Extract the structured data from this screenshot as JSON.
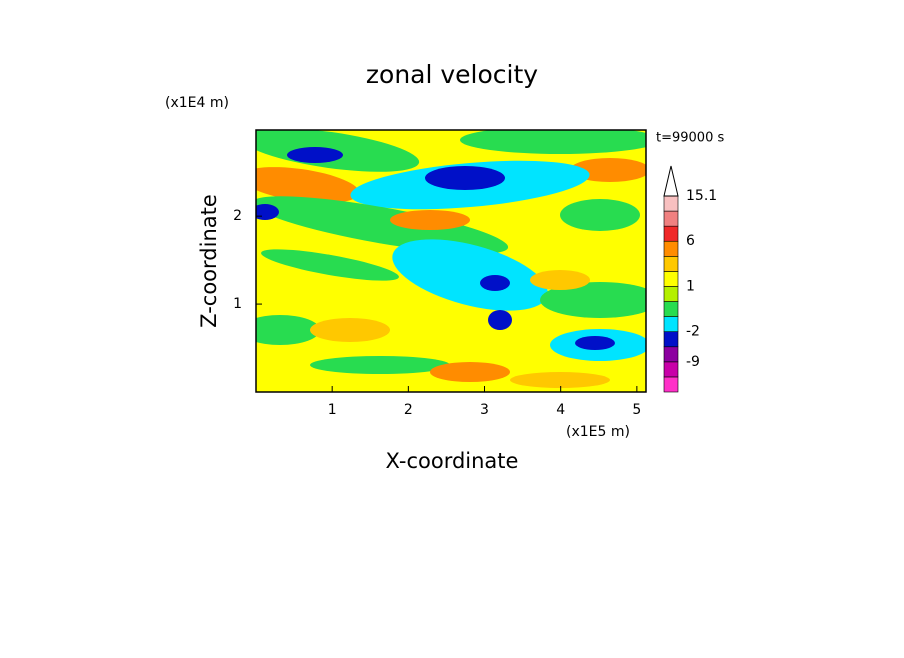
{
  "chart_data": {
    "type": "contour",
    "title": "zonal velocity",
    "x_label": "X-coordinate",
    "y_label": "Z-coordinate",
    "x_scale_label": "(x1E5 m)",
    "y_scale_label": "(x1E4 m)",
    "time_label": "t=99000 s",
    "xlim": [
      0,
      5.12
    ],
    "ylim": [
      0,
      2.98
    ],
    "xticks": [
      1,
      2,
      3,
      4,
      5
    ],
    "yticks": [
      1,
      2
    ],
    "colorbar": {
      "levels": [
        -15,
        -12,
        -9,
        -6,
        -2,
        -1,
        0,
        1,
        2,
        3,
        6,
        9,
        12,
        15.1
      ],
      "colors": [
        "#ff30c8",
        "#c800a8",
        "#8c00a0",
        "#0010c8",
        "#00e4ff",
        "#28dc50",
        "#b4f000",
        "#ffff00",
        "#ffc800",
        "#ff8c00",
        "#f02828",
        "#f08080",
        "#f8c0c0"
      ],
      "ticks": [
        15.1,
        6,
        1,
        -2,
        -9
      ]
    }
  }
}
